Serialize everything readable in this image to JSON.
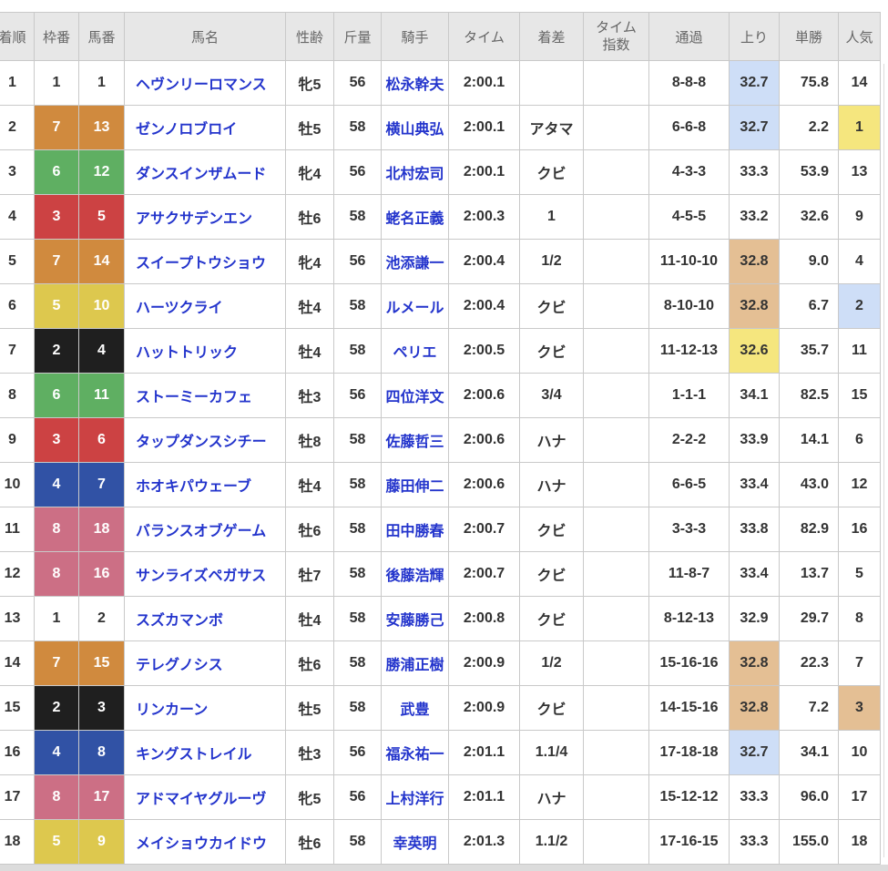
{
  "table": {
    "columns": [
      {
        "key": "finish",
        "label": "着順"
      },
      {
        "key": "frame",
        "label": "枠番"
      },
      {
        "key": "horse_no",
        "label": "馬番"
      },
      {
        "key": "horse",
        "label": "馬名"
      },
      {
        "key": "sex_age",
        "label": "性齢"
      },
      {
        "key": "weight",
        "label": "斤量"
      },
      {
        "key": "jockey",
        "label": "騎手"
      },
      {
        "key": "time",
        "label": "タイム"
      },
      {
        "key": "margin",
        "label": "着差"
      },
      {
        "key": "time_index",
        "label": "タイム指数"
      },
      {
        "key": "passing",
        "label": "通過"
      },
      {
        "key": "last3f",
        "label": "上り"
      },
      {
        "key": "odds",
        "label": "単勝"
      },
      {
        "key": "popularity",
        "label": "人気"
      }
    ],
    "rows": [
      {
        "finish": "1",
        "frame": "1",
        "horse_no": "1",
        "horse": "ヘヴンリーロマンス",
        "sex_age": "牝5",
        "weight": "56",
        "jockey": "松永幹夫",
        "time": "2:00.1",
        "margin": "",
        "time_index": "",
        "passing": "8-8-8",
        "last3f": "32.7",
        "last3f_hl": "blue",
        "odds": "75.8",
        "popularity": "14",
        "popularity_hl": ""
      },
      {
        "finish": "2",
        "frame": "7",
        "horse_no": "13",
        "horse": "ゼンノロブロイ",
        "sex_age": "牡5",
        "weight": "58",
        "jockey": "横山典弘",
        "time": "2:00.1",
        "margin": "アタマ",
        "time_index": "",
        "passing": "6-6-8",
        "last3f": "32.7",
        "last3f_hl": "blue",
        "odds": "2.2",
        "popularity": "1",
        "popularity_hl": "yellow"
      },
      {
        "finish": "3",
        "frame": "6",
        "horse_no": "12",
        "horse": "ダンスインザムード",
        "sex_age": "牝4",
        "weight": "56",
        "jockey": "北村宏司",
        "time": "2:00.1",
        "margin": "クビ",
        "time_index": "",
        "passing": "4-3-3",
        "last3f": "33.3",
        "last3f_hl": "",
        "odds": "53.9",
        "popularity": "13",
        "popularity_hl": ""
      },
      {
        "finish": "4",
        "frame": "3",
        "horse_no": "5",
        "horse": "アサクサデンエン",
        "sex_age": "牡6",
        "weight": "58",
        "jockey": "蛯名正義",
        "time": "2:00.3",
        "margin": "1",
        "time_index": "",
        "passing": "4-5-5",
        "last3f": "33.2",
        "last3f_hl": "",
        "odds": "32.6",
        "popularity": "9",
        "popularity_hl": ""
      },
      {
        "finish": "5",
        "frame": "7",
        "horse_no": "14",
        "horse": "スイープトウショウ",
        "sex_age": "牝4",
        "weight": "56",
        "jockey": "池添謙一",
        "time": "2:00.4",
        "margin": "1/2",
        "time_index": "",
        "passing": "11-10-10",
        "last3f": "32.8",
        "last3f_hl": "tan",
        "odds": "9.0",
        "popularity": "4",
        "popularity_hl": ""
      },
      {
        "finish": "6",
        "frame": "5",
        "horse_no": "10",
        "horse": "ハーツクライ",
        "sex_age": "牡4",
        "weight": "58",
        "jockey": "ルメール",
        "time": "2:00.4",
        "margin": "クビ",
        "time_index": "",
        "passing": "8-10-10",
        "last3f": "32.8",
        "last3f_hl": "tan",
        "odds": "6.7",
        "popularity": "2",
        "popularity_hl": "blue"
      },
      {
        "finish": "7",
        "frame": "2",
        "horse_no": "4",
        "horse": "ハットトリック",
        "sex_age": "牡4",
        "weight": "58",
        "jockey": "ペリエ",
        "time": "2:00.5",
        "margin": "クビ",
        "time_index": "",
        "passing": "11-12-13",
        "last3f": "32.6",
        "last3f_hl": "yellow",
        "odds": "35.7",
        "popularity": "11",
        "popularity_hl": ""
      },
      {
        "finish": "8",
        "frame": "6",
        "horse_no": "11",
        "horse": "ストーミーカフェ",
        "sex_age": "牡3",
        "weight": "56",
        "jockey": "四位洋文",
        "time": "2:00.6",
        "margin": "3/4",
        "time_index": "",
        "passing": "1-1-1",
        "last3f": "34.1",
        "last3f_hl": "",
        "odds": "82.5",
        "popularity": "15",
        "popularity_hl": ""
      },
      {
        "finish": "9",
        "frame": "3",
        "horse_no": "6",
        "horse": "タップダンスシチー",
        "sex_age": "牡8",
        "weight": "58",
        "jockey": "佐藤哲三",
        "time": "2:00.6",
        "margin": "ハナ",
        "time_index": "",
        "passing": "2-2-2",
        "last3f": "33.9",
        "last3f_hl": "",
        "odds": "14.1",
        "popularity": "6",
        "popularity_hl": ""
      },
      {
        "finish": "10",
        "frame": "4",
        "horse_no": "7",
        "horse": "ホオキパウェーブ",
        "sex_age": "牡4",
        "weight": "58",
        "jockey": "藤田伸二",
        "time": "2:00.6",
        "margin": "ハナ",
        "time_index": "",
        "passing": "6-6-5",
        "last3f": "33.4",
        "last3f_hl": "",
        "odds": "43.0",
        "popularity": "12",
        "popularity_hl": ""
      },
      {
        "finish": "11",
        "frame": "8",
        "horse_no": "18",
        "horse": "バランスオブゲーム",
        "sex_age": "牡6",
        "weight": "58",
        "jockey": "田中勝春",
        "time": "2:00.7",
        "margin": "クビ",
        "time_index": "",
        "passing": "3-3-3",
        "last3f": "33.8",
        "last3f_hl": "",
        "odds": "82.9",
        "popularity": "16",
        "popularity_hl": ""
      },
      {
        "finish": "12",
        "frame": "8",
        "horse_no": "16",
        "horse": "サンライズペガサス",
        "sex_age": "牡7",
        "weight": "58",
        "jockey": "後藤浩輝",
        "time": "2:00.7",
        "margin": "クビ",
        "time_index": "",
        "passing": "11-8-7",
        "last3f": "33.4",
        "last3f_hl": "",
        "odds": "13.7",
        "popularity": "5",
        "popularity_hl": ""
      },
      {
        "finish": "13",
        "frame": "1",
        "horse_no": "2",
        "horse": "スズカマンボ",
        "sex_age": "牡4",
        "weight": "58",
        "jockey": "安藤勝己",
        "time": "2:00.8",
        "margin": "クビ",
        "time_index": "",
        "passing": "8-12-13",
        "last3f": "32.9",
        "last3f_hl": "",
        "odds": "29.7",
        "popularity": "8",
        "popularity_hl": ""
      },
      {
        "finish": "14",
        "frame": "7",
        "horse_no": "15",
        "horse": "テレグノシス",
        "sex_age": "牡6",
        "weight": "58",
        "jockey": "勝浦正樹",
        "time": "2:00.9",
        "margin": "1/2",
        "time_index": "",
        "passing": "15-16-16",
        "last3f": "32.8",
        "last3f_hl": "tan",
        "odds": "22.3",
        "popularity": "7",
        "popularity_hl": ""
      },
      {
        "finish": "15",
        "frame": "2",
        "horse_no": "3",
        "horse": "リンカーン",
        "sex_age": "牡5",
        "weight": "58",
        "jockey": "武豊",
        "time": "2:00.9",
        "margin": "クビ",
        "time_index": "",
        "passing": "14-15-16",
        "last3f": "32.8",
        "last3f_hl": "tan",
        "odds": "7.2",
        "popularity": "3",
        "popularity_hl": "tan"
      },
      {
        "finish": "16",
        "frame": "4",
        "horse_no": "8",
        "horse": "キングストレイル",
        "sex_age": "牡3",
        "weight": "56",
        "jockey": "福永祐一",
        "time": "2:01.1",
        "margin": "1.1/4",
        "time_index": "",
        "passing": "17-18-18",
        "last3f": "32.7",
        "last3f_hl": "blue",
        "odds": "34.1",
        "popularity": "10",
        "popularity_hl": ""
      },
      {
        "finish": "17",
        "frame": "8",
        "horse_no": "17",
        "horse": "アドマイヤグルーヴ",
        "sex_age": "牝5",
        "weight": "56",
        "jockey": "上村洋行",
        "time": "2:01.1",
        "margin": "ハナ",
        "time_index": "",
        "passing": "15-12-12",
        "last3f": "33.3",
        "last3f_hl": "",
        "odds": "96.0",
        "popularity": "17",
        "popularity_hl": ""
      },
      {
        "finish": "18",
        "frame": "5",
        "horse_no": "9",
        "horse": "メイショウカイドウ",
        "sex_age": "牡6",
        "weight": "58",
        "jockey": "幸英明",
        "time": "2:01.3",
        "margin": "1.1/2",
        "time_index": "",
        "passing": "17-16-15",
        "last3f": "33.3",
        "last3f_hl": "",
        "odds": "155.0",
        "popularity": "18",
        "popularity_hl": ""
      }
    ]
  },
  "colors": {
    "frame_colors": {
      "1": "#ffffff",
      "2": "#1f1f1f",
      "3": "#cc4243",
      "4": "#3152a5",
      "5": "#ddc84e",
      "6": "#5faf62",
      "7": "#d08a3e",
      "8": "#cc6f85"
    },
    "frame_text_colors": {
      "1": "#333333",
      "2": "#ffffff",
      "3": "#ffffff",
      "4": "#ffffff",
      "5": "#ffffff",
      "6": "#ffffff",
      "7": "#ffffff",
      "8": "#ffffff"
    },
    "highlight": {
      "blue": "#cedef7",
      "tan": "#e4bf94",
      "yellow": "#f5e67e"
    },
    "link_blue": "#2334cc",
    "header_bg": "#e7e7e7",
    "body_text": "#333333"
  }
}
